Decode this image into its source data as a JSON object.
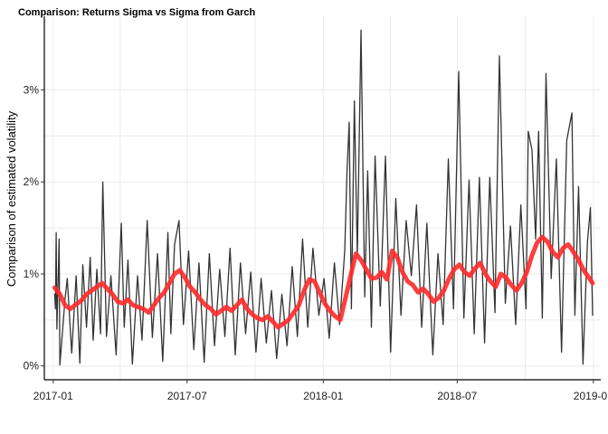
{
  "chart_data": {
    "type": "line",
    "title": "Comparison: Returns Sigma vs Sigma from Garch",
    "xlabel": "",
    "ylabel": "Comparison of estimated volatility",
    "x_range": [
      "2016-12-20",
      "2019-01-11"
    ],
    "ylim": [
      -0.0015,
      0.038
    ],
    "x_ticks": [
      {
        "date": "2017-01-01",
        "label": "2017-01"
      },
      {
        "date": "2017-07-01",
        "label": "2017-07"
      },
      {
        "date": "2018-01-01",
        "label": "2018-01"
      },
      {
        "date": "2018-07-01",
        "label": "2018-07"
      },
      {
        "date": "2019-01-01",
        "label": "2019-01"
      }
    ],
    "y_ticks": [
      {
        "value": 0.0,
        "label": "0%"
      },
      {
        "value": 0.01,
        "label": "1%"
      },
      {
        "value": 0.02,
        "label": "2%"
      },
      {
        "value": 0.03,
        "label": "3%"
      }
    ],
    "grid": true,
    "legend": "none",
    "series": [
      {
        "style": "thin-line",
        "color": "#333333",
        "points": [
          [
            "2017-01-03",
            0.0078
          ],
          [
            "2017-01-04",
            0.0062
          ],
          [
            "2017-01-05",
            0.0145
          ],
          [
            "2017-01-06",
            0.004
          ],
          [
            "2017-01-09",
            0.0138
          ],
          [
            "2017-01-10",
            0.0001
          ],
          [
            "2017-01-17",
            0.0073
          ],
          [
            "2017-01-20",
            0.0095
          ],
          [
            "2017-01-26",
            0.0014
          ],
          [
            "2017-02-01",
            0.0098
          ],
          [
            "2017-02-06",
            0.0003
          ],
          [
            "2017-02-10",
            0.011
          ],
          [
            "2017-02-15",
            0.0042
          ],
          [
            "2017-02-20",
            0.0118
          ],
          [
            "2017-02-24",
            0.0028
          ],
          [
            "2017-03-01",
            0.0105
          ],
          [
            "2017-03-06",
            0.0035
          ],
          [
            "2017-03-09",
            0.02
          ],
          [
            "2017-03-14",
            0.0032
          ],
          [
            "2017-03-20",
            0.0098
          ],
          [
            "2017-03-27",
            0.0012
          ],
          [
            "2017-04-03",
            0.0155
          ],
          [
            "2017-04-07",
            0.0042
          ],
          [
            "2017-04-12",
            0.0115
          ],
          [
            "2017-04-18",
            0.0002
          ],
          [
            "2017-04-25",
            0.0098
          ],
          [
            "2017-05-01",
            0.0028
          ],
          [
            "2017-05-08",
            0.0158
          ],
          [
            "2017-05-15",
            0.0031
          ],
          [
            "2017-05-22",
            0.0122
          ],
          [
            "2017-05-29",
            0.0005
          ],
          [
            "2017-06-05",
            0.0145
          ],
          [
            "2017-06-09",
            0.0035
          ],
          [
            "2017-06-14",
            0.0132
          ],
          [
            "2017-06-20",
            0.0158
          ],
          [
            "2017-06-26",
            0.0045
          ],
          [
            "2017-07-03",
            0.0125
          ],
          [
            "2017-07-10",
            0.0018
          ],
          [
            "2017-07-17",
            0.0112
          ],
          [
            "2017-07-24",
            0.0004
          ],
          [
            "2017-07-31",
            0.0122
          ],
          [
            "2017-08-07",
            0.0022
          ],
          [
            "2017-08-14",
            0.0105
          ],
          [
            "2017-08-21",
            0.0032
          ],
          [
            "2017-08-28",
            0.0128
          ],
          [
            "2017-09-04",
            0.0012
          ],
          [
            "2017-09-11",
            0.0112
          ],
          [
            "2017-09-18",
            0.0035
          ],
          [
            "2017-09-25",
            0.0102
          ],
          [
            "2017-10-02",
            0.0015
          ],
          [
            "2017-10-09",
            0.0095
          ],
          [
            "2017-10-16",
            0.0025
          ],
          [
            "2017-10-23",
            0.0082
          ],
          [
            "2017-10-30",
            0.0008
          ],
          [
            "2017-11-06",
            0.0078
          ],
          [
            "2017-11-13",
            0.0022
          ],
          [
            "2017-11-20",
            0.0108
          ],
          [
            "2017-11-27",
            0.0032
          ],
          [
            "2017-12-04",
            0.0138
          ],
          [
            "2017-12-11",
            0.0042
          ],
          [
            "2017-12-18",
            0.0128
          ],
          [
            "2017-12-26",
            0.0055
          ],
          [
            "2018-01-02",
            0.0095
          ],
          [
            "2018-01-09",
            0.003
          ],
          [
            "2018-01-16",
            0.0112
          ],
          [
            "2018-01-23",
            0.0045
          ],
          [
            "2018-01-30",
            0.0125
          ],
          [
            "2018-02-02",
            0.021
          ],
          [
            "2018-02-05",
            0.0265
          ],
          [
            "2018-02-08",
            0.0062
          ],
          [
            "2018-02-12",
            0.0288
          ],
          [
            "2018-02-16",
            0.012
          ],
          [
            "2018-02-21",
            0.0365
          ],
          [
            "2018-02-26",
            0.0075
          ],
          [
            "2018-03-02",
            0.0212
          ],
          [
            "2018-03-07",
            0.0042
          ],
          [
            "2018-03-12",
            0.0228
          ],
          [
            "2018-03-19",
            0.0065
          ],
          [
            "2018-03-26",
            0.0228
          ],
          [
            "2018-04-02",
            0.0015
          ],
          [
            "2018-04-09",
            0.0182
          ],
          [
            "2018-04-16",
            0.0055
          ],
          [
            "2018-04-23",
            0.0158
          ],
          [
            "2018-04-30",
            0.0098
          ],
          [
            "2018-05-07",
            0.0175
          ],
          [
            "2018-05-14",
            0.0042
          ],
          [
            "2018-05-21",
            0.0155
          ],
          [
            "2018-05-29",
            0.0012
          ],
          [
            "2018-06-05",
            0.0122
          ],
          [
            "2018-06-12",
            0.0045
          ],
          [
            "2018-06-19",
            0.0225
          ],
          [
            "2018-06-26",
            0.0062
          ],
          [
            "2018-07-03",
            0.032
          ],
          [
            "2018-07-10",
            0.0052
          ],
          [
            "2018-07-17",
            0.0202
          ],
          [
            "2018-07-24",
            0.0035
          ],
          [
            "2018-07-31",
            0.0205
          ],
          [
            "2018-08-07",
            0.0025
          ],
          [
            "2018-08-14",
            0.0205
          ],
          [
            "2018-08-21",
            0.0058
          ],
          [
            "2018-08-27",
            0.0337
          ],
          [
            "2018-09-04",
            0.0068
          ],
          [
            "2018-09-11",
            0.0152
          ],
          [
            "2018-09-18",
            0.0045
          ],
          [
            "2018-09-25",
            0.0175
          ],
          [
            "2018-10-02",
            0.0062
          ],
          [
            "2018-10-05",
            0.0255
          ],
          [
            "2018-10-10",
            0.0235
          ],
          [
            "2018-10-15",
            0.0138
          ],
          [
            "2018-10-19",
            0.0255
          ],
          [
            "2018-10-24",
            0.0052
          ],
          [
            "2018-10-29",
            0.0318
          ],
          [
            "2018-11-05",
            0.0095
          ],
          [
            "2018-11-12",
            0.0225
          ],
          [
            "2018-11-19",
            0.0015
          ],
          [
            "2018-11-26",
            0.0245
          ],
          [
            "2018-12-03",
            0.0275
          ],
          [
            "2018-12-07",
            0.0055
          ],
          [
            "2018-12-12",
            0.0195
          ],
          [
            "2018-12-18",
            0.0002
          ],
          [
            "2018-12-24",
            0.0135
          ],
          [
            "2018-12-28",
            0.0172
          ],
          [
            "2018-12-31",
            0.0055
          ]
        ]
      },
      {
        "style": "thick-line",
        "color": "#ff2a2a",
        "points": [
          [
            "2017-01-03",
            0.0085
          ],
          [
            "2017-01-10",
            0.0078
          ],
          [
            "2017-01-17",
            0.0066
          ],
          [
            "2017-01-24",
            0.0062
          ],
          [
            "2017-02-01",
            0.0067
          ],
          [
            "2017-02-08",
            0.0071
          ],
          [
            "2017-02-15",
            0.0078
          ],
          [
            "2017-02-22",
            0.0082
          ],
          [
            "2017-03-01",
            0.0086
          ],
          [
            "2017-03-08",
            0.009
          ],
          [
            "2017-03-15",
            0.0084
          ],
          [
            "2017-03-22",
            0.0078
          ],
          [
            "2017-03-29",
            0.007
          ],
          [
            "2017-04-05",
            0.0068
          ],
          [
            "2017-04-12",
            0.0072
          ],
          [
            "2017-04-19",
            0.0066
          ],
          [
            "2017-04-26",
            0.0064
          ],
          [
            "2017-05-03",
            0.0062
          ],
          [
            "2017-05-10",
            0.0058
          ],
          [
            "2017-05-17",
            0.0066
          ],
          [
            "2017-05-24",
            0.0074
          ],
          [
            "2017-05-31",
            0.008
          ],
          [
            "2017-06-07",
            0.009
          ],
          [
            "2017-06-14",
            0.01
          ],
          [
            "2017-06-21",
            0.0104
          ],
          [
            "2017-06-28",
            0.0096
          ],
          [
            "2017-07-05",
            0.0086
          ],
          [
            "2017-07-12",
            0.008
          ],
          [
            "2017-07-19",
            0.0072
          ],
          [
            "2017-07-26",
            0.0066
          ],
          [
            "2017-08-02",
            0.0062
          ],
          [
            "2017-08-09",
            0.0056
          ],
          [
            "2017-08-16",
            0.006
          ],
          [
            "2017-08-23",
            0.0064
          ],
          [
            "2017-08-30",
            0.006
          ],
          [
            "2017-09-06",
            0.0066
          ],
          [
            "2017-09-13",
            0.0072
          ],
          [
            "2017-09-20",
            0.0062
          ],
          [
            "2017-09-27",
            0.0056
          ],
          [
            "2017-10-04",
            0.0052
          ],
          [
            "2017-10-11",
            0.005
          ],
          [
            "2017-10-18",
            0.0054
          ],
          [
            "2017-10-25",
            0.0048
          ],
          [
            "2017-11-01",
            0.0042
          ],
          [
            "2017-11-08",
            0.0046
          ],
          [
            "2017-11-15",
            0.005
          ],
          [
            "2017-11-22",
            0.0058
          ],
          [
            "2017-11-29",
            0.0066
          ],
          [
            "2017-12-06",
            0.0082
          ],
          [
            "2017-12-13",
            0.0094
          ],
          [
            "2017-12-20",
            0.0092
          ],
          [
            "2017-12-27",
            0.008
          ],
          [
            "2018-01-03",
            0.0068
          ],
          [
            "2018-01-10",
            0.006
          ],
          [
            "2018-01-17",
            0.0054
          ],
          [
            "2018-01-24",
            0.005
          ],
          [
            "2018-01-31",
            0.0074
          ],
          [
            "2018-02-07",
            0.0098
          ],
          [
            "2018-02-14",
            0.0122
          ],
          [
            "2018-02-21",
            0.0115
          ],
          [
            "2018-02-28",
            0.0105
          ],
          [
            "2018-03-07",
            0.0095
          ],
          [
            "2018-03-14",
            0.0096
          ],
          [
            "2018-03-21",
            0.0102
          ],
          [
            "2018-03-28",
            0.0094
          ],
          [
            "2018-04-04",
            0.0125
          ],
          [
            "2018-04-11",
            0.0118
          ],
          [
            "2018-04-18",
            0.0102
          ],
          [
            "2018-04-25",
            0.0092
          ],
          [
            "2018-05-02",
            0.0088
          ],
          [
            "2018-05-09",
            0.008
          ],
          [
            "2018-05-16",
            0.0084
          ],
          [
            "2018-05-23",
            0.0078
          ],
          [
            "2018-05-30",
            0.007
          ],
          [
            "2018-06-06",
            0.0074
          ],
          [
            "2018-06-13",
            0.0082
          ],
          [
            "2018-06-20",
            0.0095
          ],
          [
            "2018-06-27",
            0.0105
          ],
          [
            "2018-07-04",
            0.011
          ],
          [
            "2018-07-11",
            0.0102
          ],
          [
            "2018-07-18",
            0.0098
          ],
          [
            "2018-07-25",
            0.0106
          ],
          [
            "2018-08-01",
            0.0112
          ],
          [
            "2018-08-08",
            0.01
          ],
          [
            "2018-08-15",
            0.0092
          ],
          [
            "2018-08-22",
            0.0086
          ],
          [
            "2018-08-29",
            0.01
          ],
          [
            "2018-09-05",
            0.0096
          ],
          [
            "2018-09-12",
            0.0088
          ],
          [
            "2018-09-19",
            0.0082
          ],
          [
            "2018-09-26",
            0.009
          ],
          [
            "2018-10-03",
            0.0102
          ],
          [
            "2018-10-10",
            0.012
          ],
          [
            "2018-10-17",
            0.0134
          ],
          [
            "2018-10-24",
            0.014
          ],
          [
            "2018-10-31",
            0.0135
          ],
          [
            "2018-11-07",
            0.0124
          ],
          [
            "2018-11-14",
            0.0118
          ],
          [
            "2018-11-21",
            0.0128
          ],
          [
            "2018-11-28",
            0.0132
          ],
          [
            "2018-12-05",
            0.0124
          ],
          [
            "2018-12-12",
            0.0115
          ],
          [
            "2018-12-19",
            0.0104
          ],
          [
            "2018-12-26",
            0.0096
          ],
          [
            "2018-12-31",
            0.009
          ]
        ]
      }
    ]
  }
}
